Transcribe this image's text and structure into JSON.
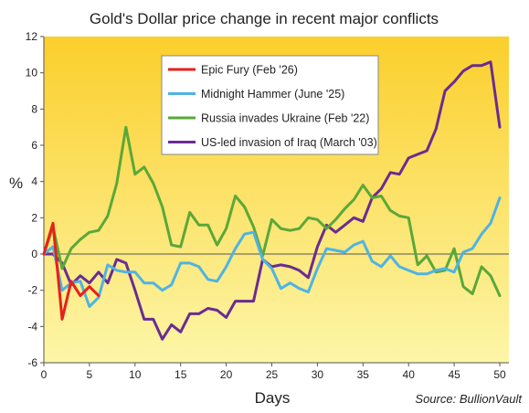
{
  "chart_data": {
    "type": "line",
    "title": "Gold's Dollar price change in recent major conflicts",
    "xlabel": "Days",
    "ylabel": "%",
    "source": "Source: BullionVault",
    "xlim": [
      0,
      51
    ],
    "ylim": [
      -6,
      12
    ],
    "xticks": [
      "0",
      "5",
      "10",
      "15",
      "20",
      "25",
      "30",
      "35",
      "40",
      "45",
      "50"
    ],
    "yticks": [
      "-6",
      "-4",
      "-2",
      "0",
      "2",
      "4",
      "6",
      "8",
      "10",
      "12"
    ],
    "xtick_values": [
      0,
      5,
      10,
      15,
      20,
      25,
      30,
      35,
      40,
      45,
      50
    ],
    "ytick_values": [
      -6,
      -4,
      -2,
      0,
      2,
      4,
      6,
      8,
      10,
      12
    ],
    "grid": false,
    "legend_position": "top-center",
    "background_gradient": [
      "#fdf6a8",
      "#fbcf2c"
    ],
    "series": [
      {
        "name": "Epic Fury (Feb '26)",
        "color": "#e8201c",
        "x": [
          0,
          1,
          2,
          3,
          4,
          5,
          6
        ],
        "y": [
          0.0,
          1.7,
          -3.6,
          -1.5,
          -2.3,
          -1.8,
          -2.3
        ]
      },
      {
        "name": "Midnight Hammer (June '25)",
        "color": "#4fb3e3",
        "x": [
          0,
          1,
          2,
          3,
          4,
          5,
          6,
          7,
          8,
          9,
          10,
          11,
          12,
          13,
          14,
          15,
          16,
          17,
          18,
          19,
          20,
          21,
          22,
          23,
          24,
          25,
          26,
          27,
          28,
          29,
          30,
          31,
          32,
          33,
          34,
          35,
          36,
          37,
          38,
          39,
          40,
          41,
          42,
          43,
          44,
          45,
          46,
          47,
          48,
          49,
          50
        ],
        "y": [
          0.0,
          0.4,
          -2.0,
          -1.6,
          -1.5,
          -2.9,
          -2.4,
          -0.6,
          -0.9,
          -1.0,
          -1.0,
          -1.6,
          -1.6,
          -2.0,
          -1.7,
          -0.5,
          -0.5,
          -0.7,
          -1.4,
          -1.5,
          -0.7,
          0.3,
          1.1,
          1.2,
          -0.3,
          -0.8,
          -1.9,
          -1.6,
          -1.9,
          -2.1,
          -0.8,
          0.3,
          0.2,
          0.1,
          0.5,
          0.7,
          -0.4,
          -0.7,
          -0.1,
          -0.7,
          -0.9,
          -1.1,
          -1.1,
          -0.9,
          -0.8,
          -1.0,
          0.1,
          0.3,
          1.1,
          1.7,
          3.1
        ]
      },
      {
        "name": "Russia invades Ukraine (Feb '22)",
        "color": "#5aa839",
        "x": [
          0,
          1,
          2,
          3,
          4,
          5,
          6,
          7,
          8,
          9,
          10,
          11,
          12,
          13,
          14,
          15,
          16,
          17,
          18,
          19,
          20,
          21,
          22,
          23,
          24,
          25,
          26,
          27,
          28,
          29,
          30,
          31,
          32,
          33,
          34,
          35,
          36,
          37,
          38,
          39,
          40,
          41,
          42,
          43,
          44,
          45,
          46,
          47,
          48,
          49,
          50
        ],
        "y": [
          0.0,
          1.5,
          -0.8,
          0.3,
          0.8,
          1.2,
          1.3,
          2.1,
          3.9,
          7.0,
          4.4,
          4.8,
          3.9,
          2.6,
          0.5,
          0.4,
          2.3,
          1.6,
          1.6,
          0.5,
          1.4,
          3.2,
          2.6,
          1.5,
          -0.1,
          1.9,
          1.4,
          1.3,
          1.4,
          2.0,
          1.9,
          1.4,
          1.9,
          2.5,
          3.0,
          3.8,
          3.1,
          3.2,
          2.4,
          2.1,
          2.0,
          -0.6,
          -0.1,
          -1.0,
          -0.9,
          0.3,
          -1.8,
          -2.2,
          -0.7,
          -1.2,
          -2.3
        ]
      },
      {
        "name": "US-led invasion of Iraq (March '03)",
        "color": "#6a2c91",
        "x": [
          0,
          1,
          2,
          3,
          4,
          5,
          6,
          7,
          8,
          9,
          10,
          11,
          12,
          13,
          14,
          15,
          16,
          17,
          18,
          19,
          20,
          21,
          22,
          23,
          24,
          25,
          26,
          27,
          28,
          29,
          30,
          31,
          32,
          33,
          34,
          35,
          36,
          37,
          38,
          39,
          40,
          41,
          42,
          43,
          44,
          45,
          46,
          47,
          48,
          49,
          50
        ],
        "y": [
          0.0,
          0.0,
          -0.5,
          -1.7,
          -1.2,
          -1.6,
          -1.0,
          -1.6,
          -0.3,
          -0.5,
          -2.0,
          -3.6,
          -3.6,
          -4.7,
          -3.9,
          -4.3,
          -3.3,
          -3.3,
          -3.0,
          -3.1,
          -3.5,
          -2.6,
          -2.6,
          -2.6,
          -0.3,
          -0.7,
          -0.6,
          -0.7,
          -0.9,
          -1.3,
          0.4,
          1.6,
          1.2,
          1.6,
          2.0,
          1.8,
          3.1,
          3.6,
          4.5,
          4.4,
          5.3,
          5.5,
          5.7,
          6.9,
          9.0,
          9.5,
          10.1,
          10.4,
          10.4,
          10.6,
          7.0
        ]
      }
    ]
  }
}
